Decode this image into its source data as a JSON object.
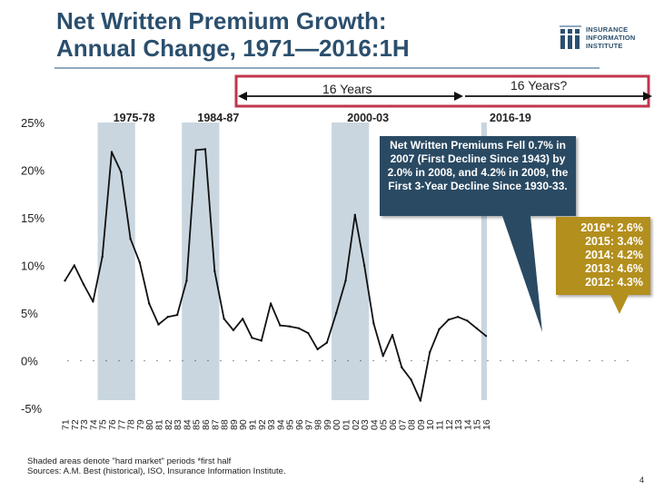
{
  "title_line1": "Net Written Premium Growth:",
  "title_line2": "Annual Change, 1971—2016:1H",
  "logo": {
    "line1": "INSURANCE",
    "line2": "INFORMATION",
    "line3": "INSTITUTE"
  },
  "footnote_line1": "Shaded areas denote \"hard market\" periods   *first half",
  "footnote_line2": "Sources:  A.M. Best (historical), ISO, Insurance Information Institute.",
  "page_number": "4",
  "callout_blue": "Net Written Premiums Fell 0.7% in 2007 (First Decline Since 1943) by 2.0% in 2008, and 4.2% in 2009, the First 3-Year Decline Since 1930-33.",
  "callout_gold": [
    "2016*: 2.6%",
    "2015: 3.4%",
    "2014: 4.2%",
    "2013: 4.6%",
    "2012: 4.3%"
  ],
  "colors": {
    "title": "#2b4f6e",
    "shade": "#c9d6df",
    "frame": "#c0354d",
    "callout_blue": "#2a4a63",
    "callout_gold": "#b38f1d"
  },
  "chart_data": {
    "type": "line",
    "ylim": [
      -5,
      25
    ],
    "yticks": [
      -5,
      0,
      5,
      10,
      15,
      20,
      25
    ],
    "ytick_labels": [
      "-5%",
      "0%",
      "5%",
      "10%",
      "15%",
      "20%",
      "25%"
    ],
    "x": [
      1971,
      1972,
      1973,
      1974,
      1975,
      1976,
      1977,
      1978,
      1979,
      1980,
      1981,
      1982,
      1983,
      1984,
      1985,
      1986,
      1987,
      1988,
      1989,
      1990,
      1991,
      1992,
      1993,
      1994,
      1995,
      1996,
      1997,
      1998,
      1999,
      2000,
      2001,
      2002,
      2003,
      2004,
      2005,
      2006,
      2007,
      2008,
      2009,
      2010,
      2011,
      2012,
      2013,
      2014,
      2015,
      2016
    ],
    "x_labels": [
      "71",
      "72",
      "73",
      "74",
      "75",
      "76",
      "77",
      "78",
      "79",
      "80",
      "81",
      "82",
      "83",
      "84",
      "85",
      "86",
      "87",
      "88",
      "89",
      "90",
      "91",
      "92",
      "93",
      "94",
      "95",
      "96",
      "97",
      "98",
      "99",
      "00",
      "01",
      "02",
      "03",
      "04",
      "05",
      "06",
      "07",
      "08",
      "09",
      "10",
      "11",
      "12",
      "13",
      "14",
      "15",
      "16"
    ],
    "y": [
      8.4,
      10.0,
      8.0,
      6.2,
      10.9,
      21.9,
      19.8,
      12.8,
      10.3,
      6.0,
      3.8,
      4.6,
      4.8,
      8.4,
      22.1,
      22.2,
      9.4,
      4.4,
      3.2,
      4.4,
      2.4,
      2.1,
      6.0,
      3.7,
      3.6,
      3.4,
      2.9,
      1.2,
      1.9,
      5.0,
      8.4,
      15.3,
      10.0,
      3.9,
      0.5,
      2.7,
      -0.7,
      -2.0,
      -4.2,
      0.9,
      3.3,
      4.3,
      4.6,
      4.2,
      3.4,
      2.6
    ],
    "shaded_periods": [
      {
        "label": "1975-78",
        "start": 1975,
        "end": 1978
      },
      {
        "label": "1984-87",
        "start": 1984,
        "end": 1987
      },
      {
        "label": "2000-03",
        "start": 2000,
        "end": 2003
      },
      {
        "label": "2016-19",
        "start": 2016,
        "end": 2019
      }
    ],
    "interval_labels": [
      "16 Years",
      "16 Years?"
    ],
    "color": "#111111",
    "grid": false
  }
}
